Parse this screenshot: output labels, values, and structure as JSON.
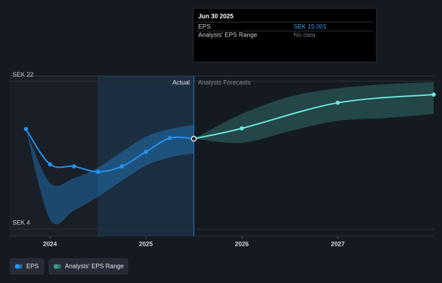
{
  "chart_data": {
    "type": "line",
    "xlim": [
      2023.58,
      2028.0
    ],
    "xticks": [
      2024,
      2025,
      2026,
      2027
    ],
    "ylim": [
      4,
      22
    ],
    "yticks": [
      {
        "value": 4,
        "label": "SEK 4"
      },
      {
        "value": 22,
        "label": "SEK 22"
      }
    ],
    "highlight": [
      2024.5,
      2025.5
    ],
    "actual_label": "Actual",
    "forecast_label": "Analysts Forecasts",
    "series": [
      {
        "name": "EPS",
        "color": "#2394f0",
        "x": [
          2023.75,
          2024.0,
          2024.25,
          2024.5,
          2024.75,
          2025.0,
          2025.25,
          2025.5
        ],
        "values": [
          16.17,
          11.89,
          11.64,
          10.97,
          11.64,
          13.4,
          15.08,
          15.001
        ],
        "forecast": {
          "color": "#6fe8dd",
          "x": [
            2025.5,
            2026.0,
            2027.0,
            2028.0
          ],
          "values": [
            15.001,
            16.26,
            19.37,
            20.37
          ]
        }
      },
      {
        "name": "Analysts' EPS Range",
        "color": "#2394f0",
        "x": [
          2023.75,
          2024.0,
          2024.25,
          2024.5,
          2024.75,
          2025.0,
          2025.25,
          2025.5
        ],
        "low": [
          16.17,
          5.18,
          6.27,
          7.95,
          9.88,
          11.72,
          12.73,
          13.24
        ],
        "high": [
          16.17,
          9.63,
          10.21,
          11.47,
          13.4,
          15.25,
          16.17,
          16.68
        ],
        "forecast": {
          "color": "#3f9a8c",
          "x": [
            2025.5,
            2026.0,
            2026.5,
            2027.0,
            2027.5,
            2028.0
          ],
          "low": [
            15.001,
            14.5,
            15.92,
            17.18,
            17.52,
            18.02
          ],
          "high": [
            15.001,
            18.02,
            20.12,
            21.13,
            21.63,
            21.88
          ]
        }
      }
    ],
    "tooltip": {
      "title": "Jun 30 2025",
      "rows": [
        [
          "EPS",
          "SEK 15.001"
        ],
        [
          "Analysts' EPS Range",
          "No data"
        ]
      ]
    }
  }
}
